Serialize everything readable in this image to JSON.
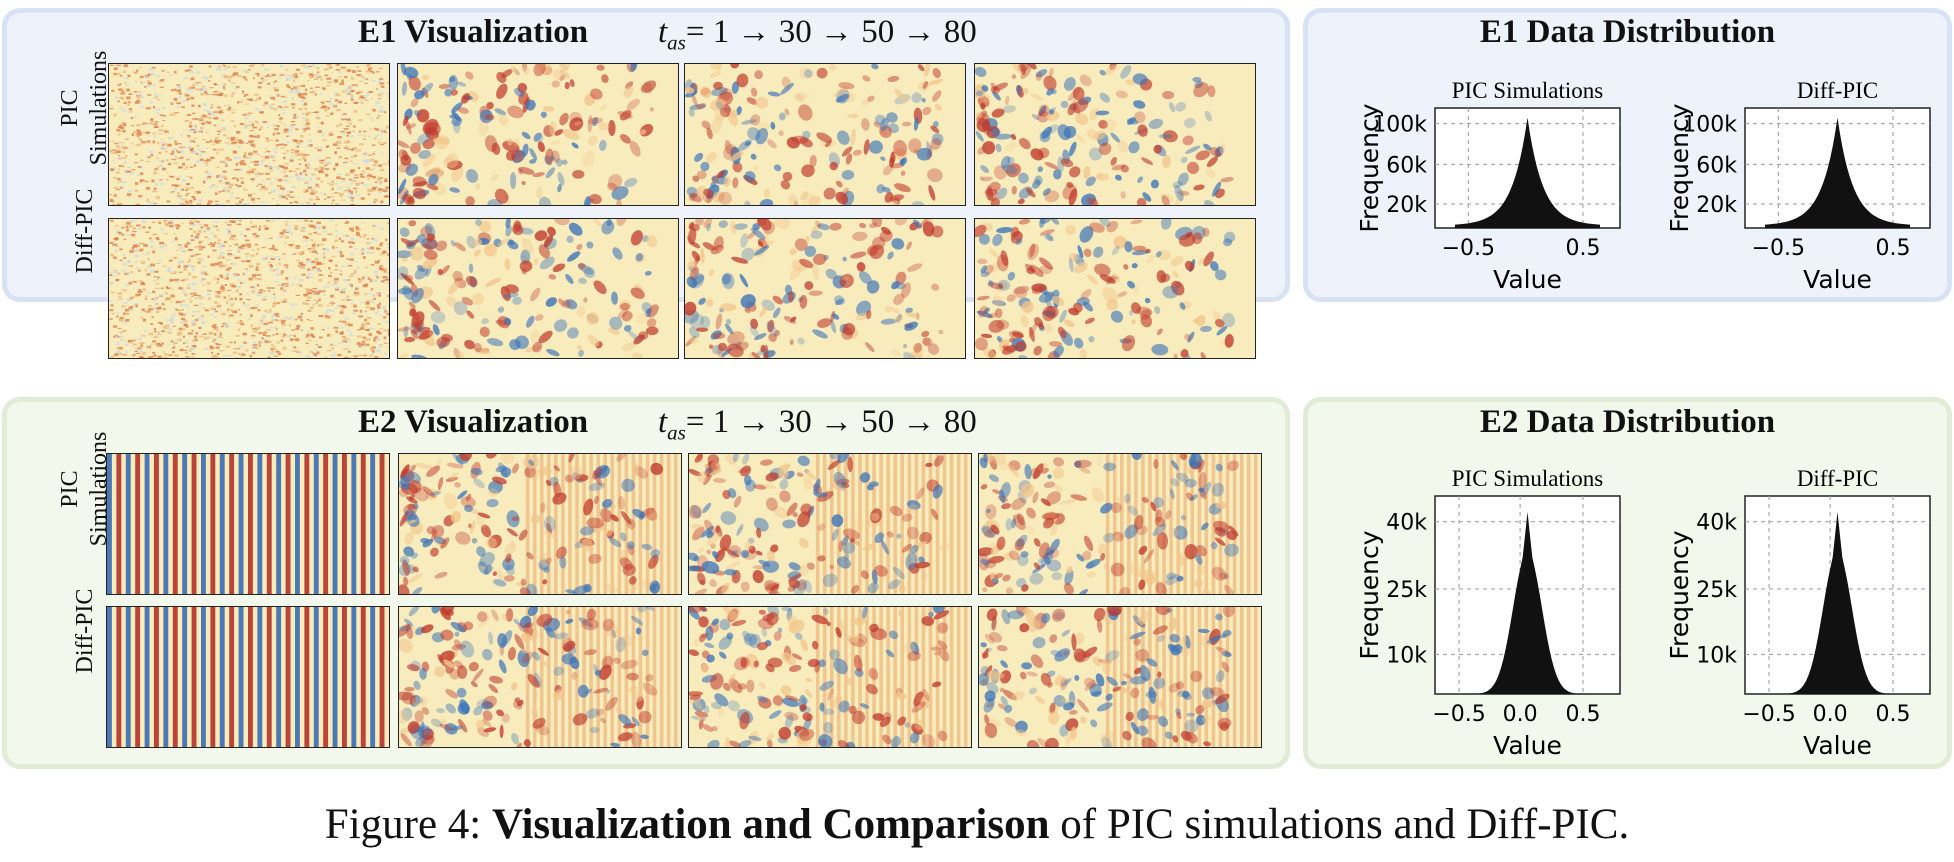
{
  "e1": {
    "title": "E1 Visualization",
    "formula": {
      "var": "t",
      "sub": "as",
      "rest": "= 1 → 30 → 50 → 80"
    },
    "rows": [
      {
        "label_line1": "PIC",
        "label_line2": "Simulations"
      },
      {
        "label_line1": "Diff-PIC",
        "label_line2": ""
      }
    ],
    "dist_title": "E1 Data Distribution",
    "hists": [
      {
        "title": "PIC Simulations",
        "ylabel": "Frequency",
        "xlabel": "Value",
        "yticks": [
          "20k",
          "60k",
          "100k"
        ],
        "xticks": [
          "−0.5",
          "0.5"
        ]
      },
      {
        "title": "Diff-PIC",
        "ylabel": "Frequency",
        "xlabel": "Value",
        "yticks": [
          "20k",
          "60k",
          "100k"
        ],
        "xticks": [
          "−0.5",
          "0.5"
        ]
      }
    ]
  },
  "e2": {
    "title": "E2 Visualization",
    "formula": {
      "var": "t",
      "sub": "as",
      "rest": "= 1 → 30 → 50 → 80"
    },
    "rows": [
      {
        "label_line1": "PIC",
        "label_line2": "Simulations"
      },
      {
        "label_line1": "Diff-PIC",
        "label_line2": ""
      }
    ],
    "dist_title": "E2 Data Distribution",
    "hists": [
      {
        "title": "PIC Simulations",
        "ylabel": "Frequency",
        "xlabel": "Value",
        "yticks": [
          "10k",
          "25k",
          "40k"
        ],
        "xticks": [
          "−0.5",
          "0.0",
          "0.5"
        ]
      },
      {
        "title": "Diff-PIC",
        "ylabel": "Frequency",
        "xlabel": "Value",
        "yticks": [
          "10k",
          "25k",
          "40k"
        ],
        "xticks": [
          "−0.5",
          "0.0",
          "0.5"
        ]
      }
    ]
  },
  "caption": {
    "prefix": "Figure 4: ",
    "bold": "Visualization and Comparison",
    "suffix": " of PIC simulations and Diff-PIC."
  },
  "colors": {
    "red": "#c0392b",
    "blue": "#3a73b8",
    "pale": "#f7e9b8",
    "hist": "#111111"
  }
}
